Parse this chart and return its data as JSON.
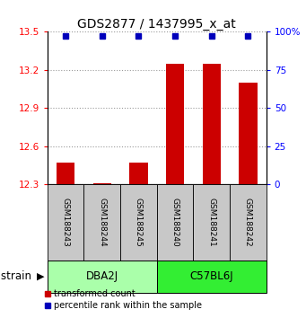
{
  "title": "GDS2877 / 1437995_x_at",
  "samples": [
    "GSM188243",
    "GSM188244",
    "GSM188245",
    "GSM188240",
    "GSM188241",
    "GSM188242"
  ],
  "groups": [
    "DBA2J",
    "DBA2J",
    "DBA2J",
    "C57BL6J",
    "C57BL6J",
    "C57BL6J"
  ],
  "group_labels": [
    "DBA2J",
    "C57BL6J"
  ],
  "dba_color": "#AAFFAA",
  "c57_color": "#33EE33",
  "bar_values": [
    12.47,
    12.31,
    12.47,
    13.25,
    13.25,
    13.1
  ],
  "ylim_left": [
    12.3,
    13.5
  ],
  "ylim_right": [
    0,
    100
  ],
  "yticks_left": [
    12.3,
    12.6,
    12.9,
    13.2,
    13.5
  ],
  "ytick_labels_left": [
    "12.3",
    "12.6",
    "12.9",
    "13.2",
    "13.5"
  ],
  "yticks_right": [
    0,
    25,
    50,
    75,
    100
  ],
  "ytick_labels_right": [
    "0",
    "25",
    "50",
    "75",
    "100%"
  ],
  "bar_color": "#CC0000",
  "percentile_color": "#0000BB",
  "bar_width": 0.5,
  "sample_box_color": "#C8C8C8",
  "strain_label": "strain",
  "legend_items": [
    "transformed count",
    "percentile rank within the sample"
  ]
}
